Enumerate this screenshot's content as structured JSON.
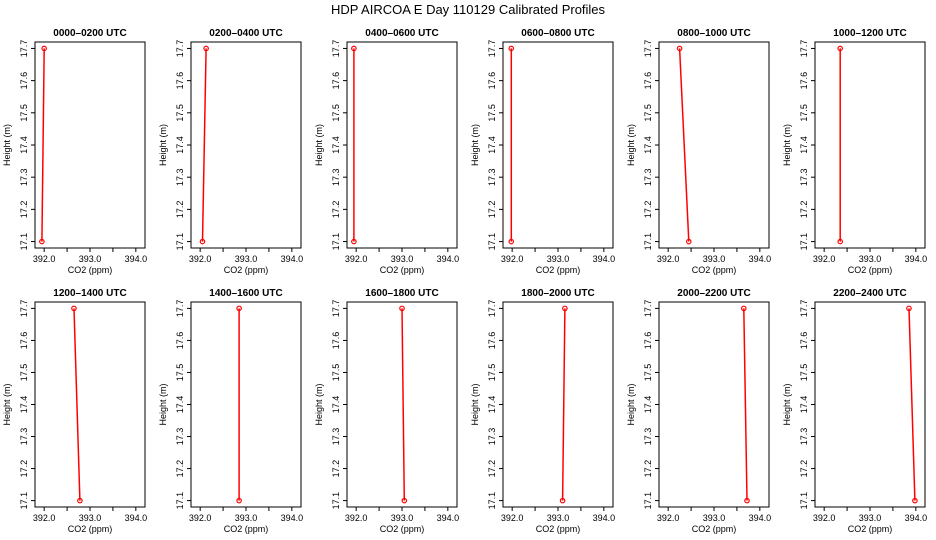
{
  "title": "HDP AIRCOA E  Day 110129  Calibrated Profiles",
  "colors": {
    "profile": "#ff0000",
    "axis": "#000000",
    "background": "#ffffff"
  },
  "chart_data": [
    {
      "type": "line",
      "title": "0000–0200 UTC",
      "xlabel": "CO2 (ppm)",
      "ylabel": "Height (m)",
      "xlim": [
        391.8,
        394.2
      ],
      "ylim": [
        17.08,
        17.72
      ],
      "xticks": [
        "392.0",
        "393.0",
        "394.0"
      ],
      "yticks": [
        "17.1",
        "17.2",
        "17.3",
        "17.4",
        "17.5",
        "17.6",
        "17.7"
      ],
      "x": [
        391.95,
        392.0
      ],
      "y": [
        17.1,
        17.7
      ]
    },
    {
      "type": "line",
      "title": "0200–0400 UTC",
      "xlabel": "CO2 (ppm)",
      "ylabel": "Height (m)",
      "xlim": [
        391.8,
        394.2
      ],
      "ylim": [
        17.08,
        17.72
      ],
      "xticks": [
        "392.0",
        "393.0",
        "394.0"
      ],
      "yticks": [
        "17.1",
        "17.2",
        "17.3",
        "17.4",
        "17.5",
        "17.6",
        "17.7"
      ],
      "x": [
        392.05,
        392.13
      ],
      "y": [
        17.1,
        17.7
      ]
    },
    {
      "type": "line",
      "title": "0400–0600 UTC",
      "xlabel": "CO2 (ppm)",
      "ylabel": "Height (m)",
      "xlim": [
        391.8,
        394.2
      ],
      "ylim": [
        17.08,
        17.72
      ],
      "xticks": [
        "392.0",
        "393.0",
        "394.0"
      ],
      "yticks": [
        "17.1",
        "17.2",
        "17.3",
        "17.4",
        "17.5",
        "17.6",
        "17.7"
      ],
      "x": [
        391.95,
        391.95
      ],
      "y": [
        17.1,
        17.7
      ]
    },
    {
      "type": "line",
      "title": "0600–0800 UTC",
      "xlabel": "CO2 (ppm)",
      "ylabel": "Height (m)",
      "xlim": [
        391.8,
        394.2
      ],
      "ylim": [
        17.08,
        17.72
      ],
      "xticks": [
        "392.0",
        "393.0",
        "394.0"
      ],
      "yticks": [
        "17.1",
        "17.2",
        "17.3",
        "17.4",
        "17.5",
        "17.6",
        "17.7"
      ],
      "x": [
        391.98,
        391.98
      ],
      "y": [
        17.1,
        17.7
      ]
    },
    {
      "type": "line",
      "title": "0800–1000 UTC",
      "xlabel": "CO2 (ppm)",
      "ylabel": "Height (m)",
      "xlim": [
        391.8,
        394.2
      ],
      "ylim": [
        17.08,
        17.72
      ],
      "xticks": [
        "392.0",
        "393.0",
        "394.0"
      ],
      "yticks": [
        "17.1",
        "17.2",
        "17.3",
        "17.4",
        "17.5",
        "17.6",
        "17.7"
      ],
      "x": [
        392.45,
        392.25
      ],
      "y": [
        17.1,
        17.7
      ]
    },
    {
      "type": "line",
      "title": "1000–1200 UTC",
      "xlabel": "CO2 (ppm)",
      "ylabel": "Height (m)",
      "xlim": [
        391.8,
        394.2
      ],
      "ylim": [
        17.08,
        17.72
      ],
      "xticks": [
        "392.0",
        "393.0",
        "394.0"
      ],
      "yticks": [
        "17.1",
        "17.2",
        "17.3",
        "17.4",
        "17.5",
        "17.6",
        "17.7"
      ],
      "x": [
        392.35,
        392.35
      ],
      "y": [
        17.1,
        17.7
      ]
    },
    {
      "type": "line",
      "title": "1200–1400 UTC",
      "xlabel": "CO2 (ppm)",
      "ylabel": "Height (m)",
      "xlim": [
        391.8,
        394.2
      ],
      "ylim": [
        17.08,
        17.72
      ],
      "xticks": [
        "392.0",
        "393.0",
        "394.0"
      ],
      "yticks": [
        "17.1",
        "17.2",
        "17.3",
        "17.4",
        "17.5",
        "17.6",
        "17.7"
      ],
      "x": [
        392.78,
        392.65
      ],
      "y": [
        17.1,
        17.7
      ]
    },
    {
      "type": "line",
      "title": "1400–1600 UTC",
      "xlabel": "CO2 (ppm)",
      "ylabel": "Height (m)",
      "xlim": [
        391.8,
        394.2
      ],
      "ylim": [
        17.08,
        17.72
      ],
      "xticks": [
        "392.0",
        "393.0",
        "394.0"
      ],
      "yticks": [
        "17.1",
        "17.2",
        "17.3",
        "17.4",
        "17.5",
        "17.6",
        "17.7"
      ],
      "x": [
        392.85,
        392.85
      ],
      "y": [
        17.1,
        17.7
      ]
    },
    {
      "type": "line",
      "title": "1600–1800 UTC",
      "xlabel": "CO2 (ppm)",
      "ylabel": "Height (m)",
      "xlim": [
        391.8,
        394.2
      ],
      "ylim": [
        17.08,
        17.72
      ],
      "xticks": [
        "392.0",
        "393.0",
        "394.0"
      ],
      "yticks": [
        "17.1",
        "17.2",
        "17.3",
        "17.4",
        "17.5",
        "17.6",
        "17.7"
      ],
      "x": [
        393.05,
        393.0
      ],
      "y": [
        17.1,
        17.7
      ]
    },
    {
      "type": "line",
      "title": "1800–2000 UTC",
      "xlabel": "CO2 (ppm)",
      "ylabel": "Height (m)",
      "xlim": [
        391.8,
        394.2
      ],
      "ylim": [
        17.08,
        17.72
      ],
      "xticks": [
        "392.0",
        "393.0",
        "394.0"
      ],
      "yticks": [
        "17.1",
        "17.2",
        "17.3",
        "17.4",
        "17.5",
        "17.6",
        "17.7"
      ],
      "x": [
        393.1,
        393.15
      ],
      "y": [
        17.1,
        17.7
      ]
    },
    {
      "type": "line",
      "title": "2000–2200 UTC",
      "xlabel": "CO2 (ppm)",
      "ylabel": "Height (m)",
      "xlim": [
        391.8,
        394.2
      ],
      "ylim": [
        17.08,
        17.72
      ],
      "xticks": [
        "392.0",
        "393.0",
        "394.0"
      ],
      "yticks": [
        "17.1",
        "17.2",
        "17.3",
        "17.4",
        "17.5",
        "17.6",
        "17.7"
      ],
      "x": [
        393.72,
        393.65
      ],
      "y": [
        17.1,
        17.7
      ]
    },
    {
      "type": "line",
      "title": "2200–2400 UTC",
      "xlabel": "CO2 (ppm)",
      "ylabel": "Height (m)",
      "xlim": [
        391.8,
        394.2
      ],
      "ylim": [
        17.08,
        17.72
      ],
      "xticks": [
        "392.0",
        "393.0",
        "394.0"
      ],
      "yticks": [
        "17.1",
        "17.2",
        "17.3",
        "17.4",
        "17.5",
        "17.6",
        "17.7"
      ],
      "x": [
        393.98,
        393.85
      ],
      "y": [
        17.1,
        17.7
      ]
    }
  ]
}
